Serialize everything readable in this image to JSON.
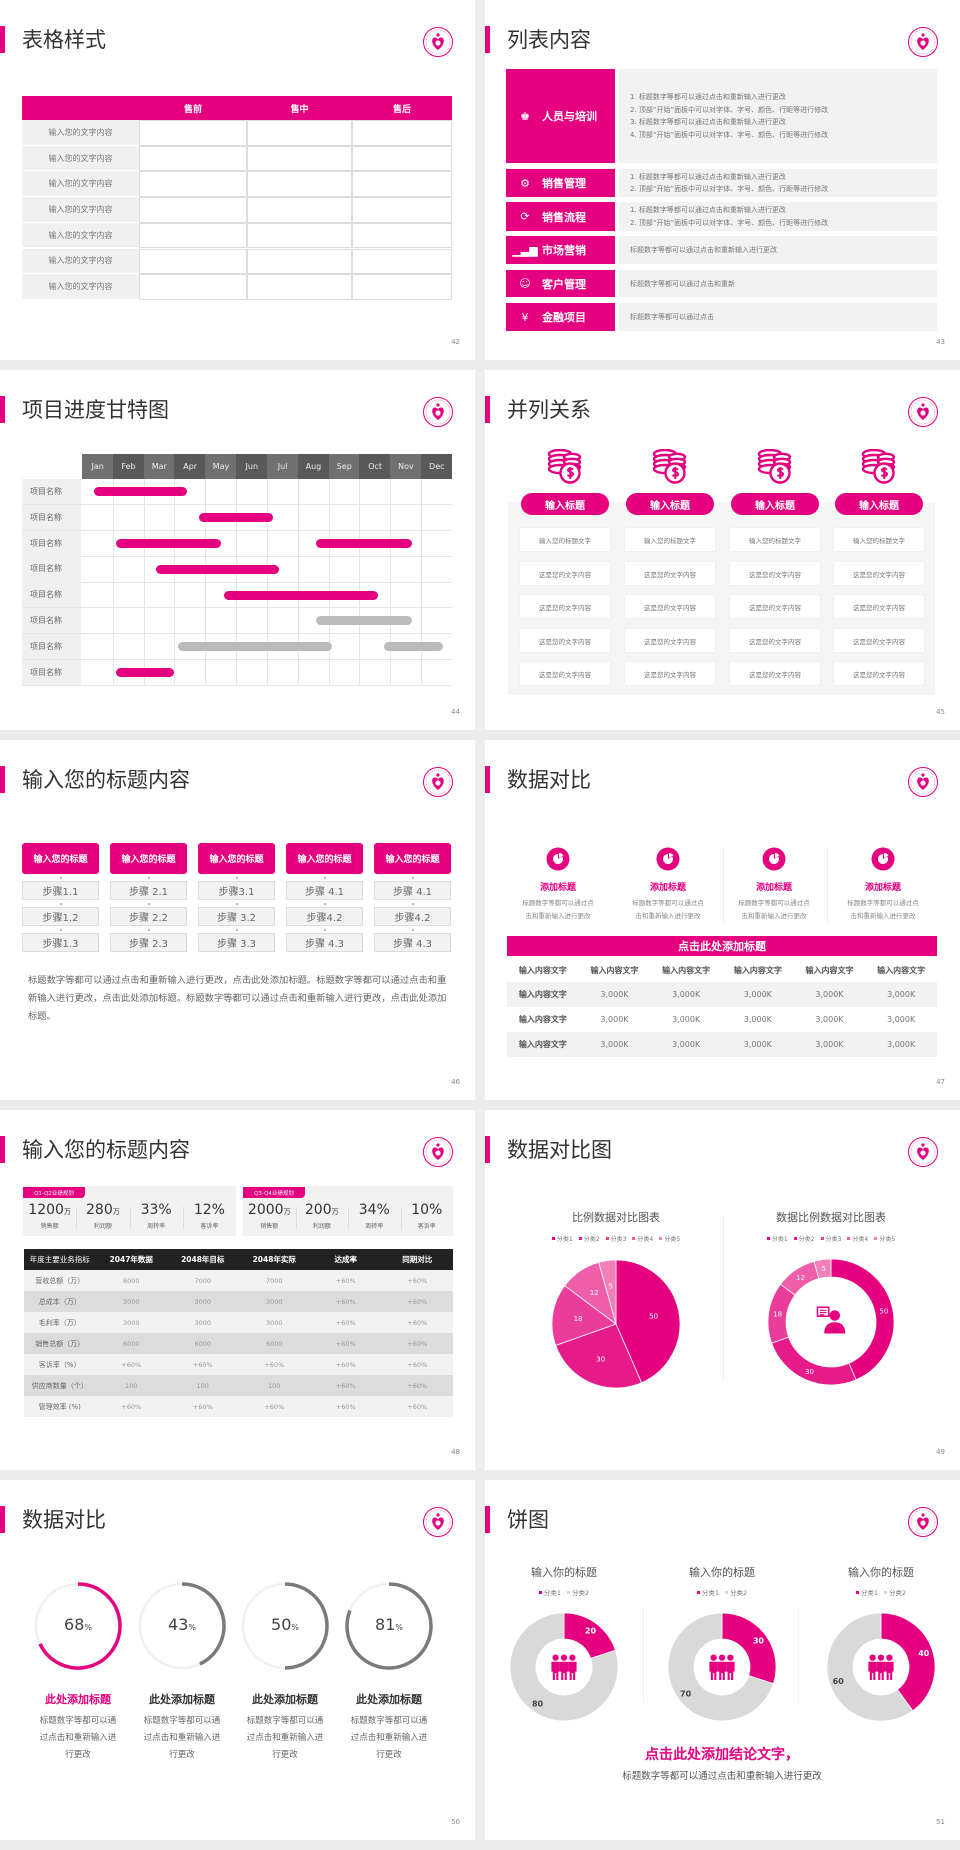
{
  "colors": {
    "accent": "#e4007f",
    "gray": "#bbbbbb",
    "light_gray": "#d9d9d9",
    "dark": "#222222"
  },
  "slides": [
    {
      "page": "42",
      "title": "表格样式",
      "table": {
        "headers": [
          "",
          "售前",
          "售中",
          "售后"
        ],
        "rows": [
          "输入您的文字内容",
          "输入您的文字内容",
          "输入您的文字内容",
          "输入您的文字内容",
          "输入您的文字内容",
          "输入您的文字内容",
          "输入您的文字内容"
        ]
      }
    },
    {
      "page": "43",
      "title": "列表内容",
      "items": [
        {
          "label": "人员与培训",
          "icon": "training-icon",
          "lines": [
            "1.  标题数字等都可以通过点击和重新输入进行更改",
            "2.  顶部“开始”面板中可以对字体、字号、颜色、行距等进行修改",
            "3.  标题数字等都可以通过点击和重新输入进行更改",
            "4.  顶部“开始”面板中可以对字体、字号、颜色、行距等进行修改"
          ]
        },
        {
          "label": "销售管理",
          "icon": "manager-gear-icon",
          "lines": [
            "1.  标题数字等都可以通过点击和重新输入进行更改",
            "2.  顶部“开始”面板中可以对字体、字号、颜色、行距等进行修改"
          ]
        },
        {
          "label": "销售流程",
          "icon": "cycle-icon",
          "lines": [
            "1.  标题数字等都可以通过点击和重新输入进行更改",
            "2.  顶部“开始”面板中可以对字体、字号、颜色、行距等进行修改"
          ]
        },
        {
          "label": "市场营销",
          "icon": "bar-chart-icon",
          "lines": [
            "标题数字等都可以通过点击和重新输入进行更改"
          ]
        },
        {
          "label": "客户管理",
          "icon": "users-icon",
          "lines": [
            "标题数字等都可以通过点击和重新"
          ]
        },
        {
          "label": "金融项目",
          "icon": "money-hand-icon",
          "lines": [
            "标题数字等都可以通过点击"
          ]
        }
      ]
    },
    {
      "page": "44",
      "title": "项目进度甘特图"
    },
    {
      "page": "45",
      "title": "并列关系",
      "columns": [
        {
          "icon": "coins-dollar-icon",
          "title": "输入标题",
          "cells": [
            "输入您的标题文字",
            "这是您的文字内容",
            "这是您的文字内容",
            "这是您的文字内容",
            "这是您的文字内容"
          ]
        },
        {
          "icon": "coins-dollar-icon",
          "title": "输入标题",
          "cells": [
            "输入您的标题文字",
            "这是您的文字内容",
            "这是您的文字内容",
            "这是您的文字内容",
            "这是您的文字内容"
          ]
        },
        {
          "icon": "coins-dollar-icon",
          "title": "输入标题",
          "cells": [
            "输入您的标题文字",
            "这是您的文字内容",
            "这是您的文字内容",
            "这是您的文字内容",
            "这是您的文字内容"
          ]
        },
        {
          "icon": "coins-dollar-icon",
          "title": "输入标题",
          "cells": [
            "输入您的标题文字",
            "这是您的文字内容",
            "这是您的文字内容",
            "这是您的文字内容",
            "这是您的文字内容"
          ]
        }
      ]
    },
    {
      "page": "46",
      "title": "输入您的标题内容",
      "columns": [
        {
          "header": "输入您的标题",
          "steps": [
            "步骤1.1",
            "步骤1.2",
            "步骤1.3"
          ]
        },
        {
          "header": "输入您的标题",
          "steps": [
            "步骤 2.1",
            "步骤 2.2",
            "步骤 2.3"
          ]
        },
        {
          "header": "输入您的标题",
          "steps": [
            "步骤3.1",
            "步骤 3.2",
            "步骤 3.3"
          ]
        },
        {
          "header": "输入您的标题",
          "steps": [
            "步骤 4.1",
            "步骤4.2",
            "步骤 4.3"
          ]
        },
        {
          "header": "输入您的标题",
          "steps": [
            "步骤 4.1",
            "步骤4.2",
            "步骤 4.3"
          ]
        }
      ],
      "paragraph": "标题数字等都可以通过点击和重新输入进行更改，点击此处添加标题。标题数字等都可以通过点击和重新输入进行更改，点击此处添加标题。标题数字等都可以通过点击和重新输入进行更改，点击此处添加标题。"
    },
    {
      "page": "47",
      "title": "数据对比",
      "features": [
        {
          "icon": "pie-chart-icon",
          "title": "添加标题",
          "desc": [
            "标题数字等都可以通过点",
            "击和重新输入进行更改"
          ]
        },
        {
          "icon": "pie-chart-icon",
          "title": "添加标题",
          "desc": [
            "标题数字等都可以通过点",
            "击和重新输入进行更改"
          ]
        },
        {
          "icon": "pie-chart-icon",
          "title": "添加标题",
          "desc": [
            "标题数字等都可以通过点",
            "击和重新输入进行更改"
          ]
        },
        {
          "icon": "pie-chart-icon",
          "title": "添加标题",
          "desc": [
            "标题数字等都可以通过点",
            "击和重新输入进行更改"
          ]
        }
      ],
      "table_title": "点击此处添加标题",
      "table_headers": [
        "输入内容文字",
        "输入内容文字",
        "输入内容文字",
        "输入内容文字",
        "输入内容文字",
        "输入内容文字"
      ],
      "table_rows": [
        [
          "输入内容文字",
          "3,000K",
          "3,000K",
          "3,000K",
          "3,000K",
          "3,000K"
        ],
        [
          "输入内容文字",
          "3,000K",
          "3,000K",
          "3,000K",
          "3,000K",
          "3,000K"
        ],
        [
          "输入内容文字",
          "3,000K",
          "3,000K",
          "3,000K",
          "3,000K",
          "3,000K"
        ]
      ]
    },
    {
      "page": "48",
      "title": "输入您的标题内容",
      "kpi_groups": [
        {
          "tag": "Q1-Q2业绩规划",
          "items": [
            {
              "value": "1200",
              "unit": "万",
              "label": "销售额"
            },
            {
              "value": "280",
              "unit": "万",
              "label": "利润额"
            },
            {
              "value": "33%",
              "unit": "",
              "label": "周转率"
            },
            {
              "value": "12%",
              "unit": "",
              "label": "客诉率"
            }
          ]
        },
        {
          "tag": "Q3-Q4业绩规划",
          "items": [
            {
              "value": "2000",
              "unit": "万",
              "label": "销售额"
            },
            {
              "value": "200",
              "unit": "万",
              "label": "利润额"
            },
            {
              "value": "34%",
              "unit": "",
              "label": "周转率"
            },
            {
              "value": "10%",
              "unit": "",
              "label": "客诉率"
            }
          ]
        }
      ],
      "table_headers": [
        "年度主要业务指标",
        "2047年数据",
        "2048年目标",
        "2048年实际",
        "达成率",
        "同期对比"
      ],
      "table_rows": [
        [
          "营收总额（万）",
          "6000",
          "7000",
          "7000",
          "+60%",
          "+60%"
        ],
        [
          "总成本（万）",
          "3000",
          "3000",
          "3000",
          "+60%",
          "+60%"
        ],
        [
          "毛利率（万）",
          "3000",
          "3000",
          "3000",
          "+60%",
          "+60%"
        ],
        [
          "销售总额（万）",
          "6000",
          "6000",
          "6000",
          "+60%",
          "+60%"
        ],
        [
          "客诉率（%）",
          "+60%",
          "+60%",
          "+60%",
          "+60%",
          "+60%"
        ],
        [
          "供应商数量（个）",
          "100",
          "100",
          "100",
          "+60%",
          "+60%"
        ],
        [
          "管理效率 (%)",
          "+60%",
          "+60%",
          "+60%",
          "+60%",
          "+60%"
        ]
      ]
    },
    {
      "page": "49",
      "title": "数据对比图"
    },
    {
      "page": "50",
      "title": "数据对比",
      "rings": [
        {
          "value": "68",
          "unit": "%",
          "progress": 68,
          "title": "此处添加标题",
          "desc": [
            "标题数字等都可以通",
            "过点击和重新输入进",
            "行更改"
          ],
          "highlight": true
        },
        {
          "value": "43",
          "unit": "%",
          "progress": 43,
          "title": "此处添加标题",
          "desc": [
            "标题数字等都可以通",
            "过点击和重新输入进",
            "行更改"
          ],
          "highlight": false
        },
        {
          "value": "50",
          "unit": "%",
          "progress": 50,
          "title": "此处添加标题",
          "desc": [
            "标题数字等都可以通",
            "过点击和重新输入进",
            "行更改"
          ],
          "highlight": false
        },
        {
          "value": "81",
          "unit": "%",
          "progress": 81,
          "title": "此处添加标题",
          "desc": [
            "标题数字等都可以通",
            "过点击和重新输入进",
            "行更改"
          ],
          "highlight": false
        }
      ]
    },
    {
      "page": "51",
      "title": "饼图",
      "conclusion": "点击此处添加结论文字，",
      "subtitle": "标题数字等都可以通过点击和重新输入进行更改"
    }
  ],
  "chart_data": [
    {
      "type": "gantt",
      "slide": "44",
      "x_categories": [
        "Jan",
        "Feb",
        "Mar",
        "Apr",
        "May",
        "Jun",
        "Jul",
        "Aug",
        "Sep",
        "Oct",
        "Nov",
        "Dec"
      ],
      "x_unit": "month (0 = start of Jan, 12 = end of Dec)",
      "rows": [
        {
          "label": "项目名称",
          "bars": [
            {
              "start": 0.4,
              "end": 3.4,
              "status": "active"
            }
          ]
        },
        {
          "label": "项目名称",
          "bars": [
            {
              "start": 3.8,
              "end": 6.2,
              "status": "active"
            }
          ]
        },
        {
          "label": "项目名称",
          "bars": [
            {
              "start": 1.1,
              "end": 4.5,
              "status": "active"
            },
            {
              "start": 7.6,
              "end": 10.7,
              "status": "active"
            }
          ]
        },
        {
          "label": "项目名称",
          "bars": [
            {
              "start": 2.4,
              "end": 6.4,
              "status": "active"
            }
          ]
        },
        {
          "label": "项目名称",
          "bars": [
            {
              "start": 4.6,
              "end": 9.6,
              "status": "active"
            }
          ]
        },
        {
          "label": "项目名称",
          "bars": [
            {
              "start": 7.6,
              "end": 10.7,
              "status": "inactive"
            }
          ]
        },
        {
          "label": "项目名称",
          "bars": [
            {
              "start": 3.1,
              "end": 8.1,
              "status": "inactive"
            },
            {
              "start": 9.8,
              "end": 11.7,
              "status": "inactive"
            }
          ]
        },
        {
          "label": "项目名称",
          "bars": [
            {
              "start": 1.1,
              "end": 3.0,
              "status": "active"
            }
          ]
        }
      ]
    },
    {
      "type": "pie",
      "slide": "49",
      "title": "比例数据对比图表",
      "legend": "top",
      "categories": [
        "分类1",
        "分类2",
        "分类3",
        "分类4",
        "分类5"
      ],
      "values": [
        50,
        30,
        18,
        12,
        5
      ],
      "colors": [
        "#e4007f",
        "#e71a8a",
        "#ea3d99",
        "#ee5ea9",
        "#f27fb9"
      ]
    },
    {
      "type": "donut",
      "slide": "49",
      "title": "数据比例数据对比图表",
      "legend": "top",
      "center_icon": "presenter-icon",
      "categories": [
        "分类1",
        "分类2",
        "分类3",
        "分类4",
        "分类5"
      ],
      "values": [
        50,
        30,
        18,
        12,
        5
      ],
      "colors": [
        "#e4007f",
        "#e71a8a",
        "#ea3d99",
        "#ee5ea9",
        "#f27fb9"
      ]
    },
    {
      "type": "donut",
      "slide": "51",
      "title": "输入你的标题",
      "legend": "top",
      "center_icon": "team-icon",
      "categories": [
        "分类1",
        "分类2"
      ],
      "values": [
        20,
        80
      ],
      "colors": [
        "#e4007f",
        "#d9d9d9"
      ]
    },
    {
      "type": "donut",
      "slide": "51",
      "title": "输入你的标题",
      "legend": "top",
      "center_icon": "team-icon",
      "categories": [
        "分类1",
        "分类2"
      ],
      "values": [
        30,
        70
      ],
      "colors": [
        "#e4007f",
        "#d9d9d9"
      ]
    },
    {
      "type": "donut",
      "slide": "51",
      "title": "输入你的标题",
      "legend": "top",
      "center_icon": "team-icon",
      "categories": [
        "分类1",
        "分类2"
      ],
      "values": [
        40,
        60
      ],
      "colors": [
        "#e4007f",
        "#d9d9d9"
      ]
    }
  ]
}
